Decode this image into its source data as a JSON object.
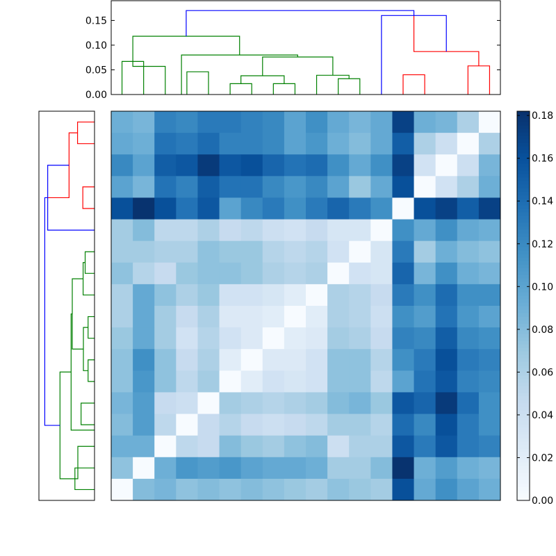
{
  "chart_data": {
    "type": "heatmap",
    "title": "",
    "n": 18,
    "colormap": "Blues",
    "vmin": 0,
    "vmax": 0.182,
    "colorbar_ticks": [
      "0.00",
      "0.02",
      "0.04",
      "0.06",
      "0.08",
      "0.10",
      "0.12",
      "0.14",
      "0.16",
      "0.18"
    ],
    "colorbar_values": [
      0,
      0.02,
      0.04,
      0.06,
      0.08,
      0.1,
      0.12,
      0.14,
      0.16,
      0.18
    ],
    "dendrogram_ylim": [
      0,
      0.19
    ],
    "dendrogram_ticks": [
      "0.00",
      "0.05",
      "0.10",
      "0.15"
    ],
    "dendrogram_tick_values": [
      0,
      0.05,
      0.1,
      0.15
    ],
    "matrix": [
      [
        0.09,
        0.085,
        0.125,
        0.12,
        0.13,
        0.13,
        0.125,
        0.12,
        0.1,
        0.115,
        0.095,
        0.085,
        0.095,
        0.17,
        0.09,
        0.085,
        0.06,
        0.0
      ],
      [
        0.095,
        0.09,
        0.135,
        0.13,
        0.14,
        0.125,
        0.125,
        0.12,
        0.1,
        0.11,
        0.09,
        0.08,
        0.095,
        0.15,
        0.06,
        0.04,
        0.0,
        0.06
      ],
      [
        0.12,
        0.1,
        0.15,
        0.155,
        0.175,
        0.155,
        0.16,
        0.145,
        0.135,
        0.14,
        0.115,
        0.095,
        0.115,
        0.17,
        0.035,
        0.0,
        0.04,
        0.085
      ],
      [
        0.1,
        0.085,
        0.135,
        0.125,
        0.15,
        0.135,
        0.135,
        0.12,
        0.11,
        0.12,
        0.1,
        0.07,
        0.095,
        0.16,
        0.0,
        0.035,
        0.06,
        0.09
      ],
      [
        0.16,
        0.18,
        0.16,
        0.135,
        0.155,
        0.1,
        0.12,
        0.13,
        0.115,
        0.13,
        0.145,
        0.13,
        0.115,
        0.0,
        0.16,
        0.17,
        0.15,
        0.17
      ],
      [
        0.065,
        0.08,
        0.05,
        0.05,
        0.06,
        0.045,
        0.05,
        0.04,
        0.035,
        0.045,
        0.03,
        0.03,
        0.0,
        0.115,
        0.095,
        0.115,
        0.095,
        0.09
      ],
      [
        0.065,
        0.065,
        0.06,
        0.06,
        0.075,
        0.07,
        0.07,
        0.055,
        0.05,
        0.055,
        0.035,
        0.0,
        0.03,
        0.13,
        0.065,
        0.09,
        0.08,
        0.075
      ],
      [
        0.075,
        0.055,
        0.045,
        0.07,
        0.075,
        0.075,
        0.07,
        0.06,
        0.055,
        0.06,
        0.0,
        0.035,
        0.03,
        0.145,
        0.085,
        0.115,
        0.09,
        0.085
      ],
      [
        0.06,
        0.095,
        0.075,
        0.06,
        0.07,
        0.035,
        0.035,
        0.03,
        0.02,
        0.0,
        0.06,
        0.055,
        0.045,
        0.13,
        0.115,
        0.14,
        0.115,
        0.115
      ],
      [
        0.06,
        0.095,
        0.065,
        0.045,
        0.06,
        0.025,
        0.025,
        0.02,
        0.0,
        0.02,
        0.06,
        0.055,
        0.04,
        0.115,
        0.105,
        0.135,
        0.11,
        0.1
      ],
      [
        0.07,
        0.095,
        0.065,
        0.035,
        0.055,
        0.035,
        0.025,
        0.0,
        0.02,
        0.025,
        0.065,
        0.06,
        0.045,
        0.125,
        0.12,
        0.15,
        0.12,
        0.115
      ],
      [
        0.075,
        0.115,
        0.075,
        0.045,
        0.06,
        0.02,
        0.0,
        0.025,
        0.025,
        0.035,
        0.075,
        0.075,
        0.055,
        0.115,
        0.13,
        0.16,
        0.13,
        0.125
      ],
      [
        0.075,
        0.11,
        0.075,
        0.05,
        0.065,
        0.0,
        0.02,
        0.035,
        0.03,
        0.035,
        0.075,
        0.075,
        0.05,
        0.1,
        0.135,
        0.155,
        0.125,
        0.12
      ],
      [
        0.085,
        0.105,
        0.045,
        0.04,
        0.0,
        0.065,
        0.06,
        0.055,
        0.06,
        0.065,
        0.08,
        0.085,
        0.07,
        0.155,
        0.145,
        0.175,
        0.14,
        0.115
      ],
      [
        0.08,
        0.105,
        0.05,
        0.0,
        0.045,
        0.055,
        0.045,
        0.04,
        0.045,
        0.05,
        0.065,
        0.065,
        0.055,
        0.14,
        0.12,
        0.16,
        0.13,
        0.115
      ],
      [
        0.09,
        0.09,
        0.0,
        0.05,
        0.045,
        0.08,
        0.07,
        0.065,
        0.075,
        0.08,
        0.04,
        0.06,
        0.06,
        0.155,
        0.13,
        0.155,
        0.13,
        0.125
      ],
      [
        0.075,
        0.0,
        0.09,
        0.11,
        0.105,
        0.11,
        0.1,
        0.095,
        0.095,
        0.09,
        0.065,
        0.065,
        0.08,
        0.18,
        0.09,
        0.105,
        0.09,
        0.085
      ],
      [
        0.0,
        0.08,
        0.085,
        0.075,
        0.08,
        0.075,
        0.08,
        0.075,
        0.07,
        0.065,
        0.075,
        0.07,
        0.065,
        0.16,
        0.095,
        0.115,
        0.1,
        0.09
      ]
    ],
    "links": [
      {
        "a": 0,
        "b": 1,
        "h": 0.067,
        "color": "green"
      },
      {
        "a": 3,
        "b": 4,
        "h": 0.046,
        "color": "green"
      },
      {
        "a": 2,
        "b": 0.5,
        "h": 0.057,
        "color": "green",
        "aIsPos": false,
        "bIsPos": true
      },
      {
        "a": 5,
        "b": 6,
        "h": 0.022,
        "color": "green"
      },
      {
        "a": 7,
        "b": 8,
        "h": 0.022,
        "color": "green"
      },
      {
        "a": 5.5,
        "b": 7.5,
        "h": 0.038,
        "color": "green",
        "aIsPos": true,
        "bIsPos": true
      },
      {
        "a": 10,
        "b": 11,
        "h": 0.032,
        "color": "green"
      },
      {
        "a": 9,
        "b": 10.5,
        "h": 0.039,
        "color": "green",
        "aIsPos": false,
        "bIsPos": true
      },
      {
        "a": 6.5,
        "b": 9.75,
        "h": 0.076,
        "color": "green",
        "aIsPos": true,
        "bIsPos": true
      },
      {
        "a": 2.75,
        "b": 8.125,
        "h": 0.08,
        "color": "green",
        "aIsPos": true,
        "bIsPos": true
      },
      {
        "a": 0.5,
        "b": 5.4375,
        "h": 0.118,
        "color": "green",
        "aIsPos": true,
        "bIsPos": true
      },
      {
        "a": 13,
        "b": 14,
        "h": 0.04,
        "color": "red"
      },
      {
        "a": 16,
        "b": 17,
        "h": 0.058,
        "color": "red"
      },
      {
        "a": 13.5,
        "b": 16.5,
        "h": 0.087,
        "color": "red",
        "aIsPos": true,
        "bIsPos": true
      },
      {
        "a": 12,
        "b": 15,
        "h": 0.16,
        "color": "blue",
        "aIsPos": false,
        "bIsPos": true
      },
      {
        "a": 2.96875,
        "b": 13.5,
        "h": 0.17,
        "color": "blue",
        "aIsPos": true,
        "bIsPos": true
      }
    ],
    "colors": {
      "green": "#008000",
      "red": "#ff0000",
      "blue": "#0000ff",
      "axis": "#000000"
    }
  }
}
